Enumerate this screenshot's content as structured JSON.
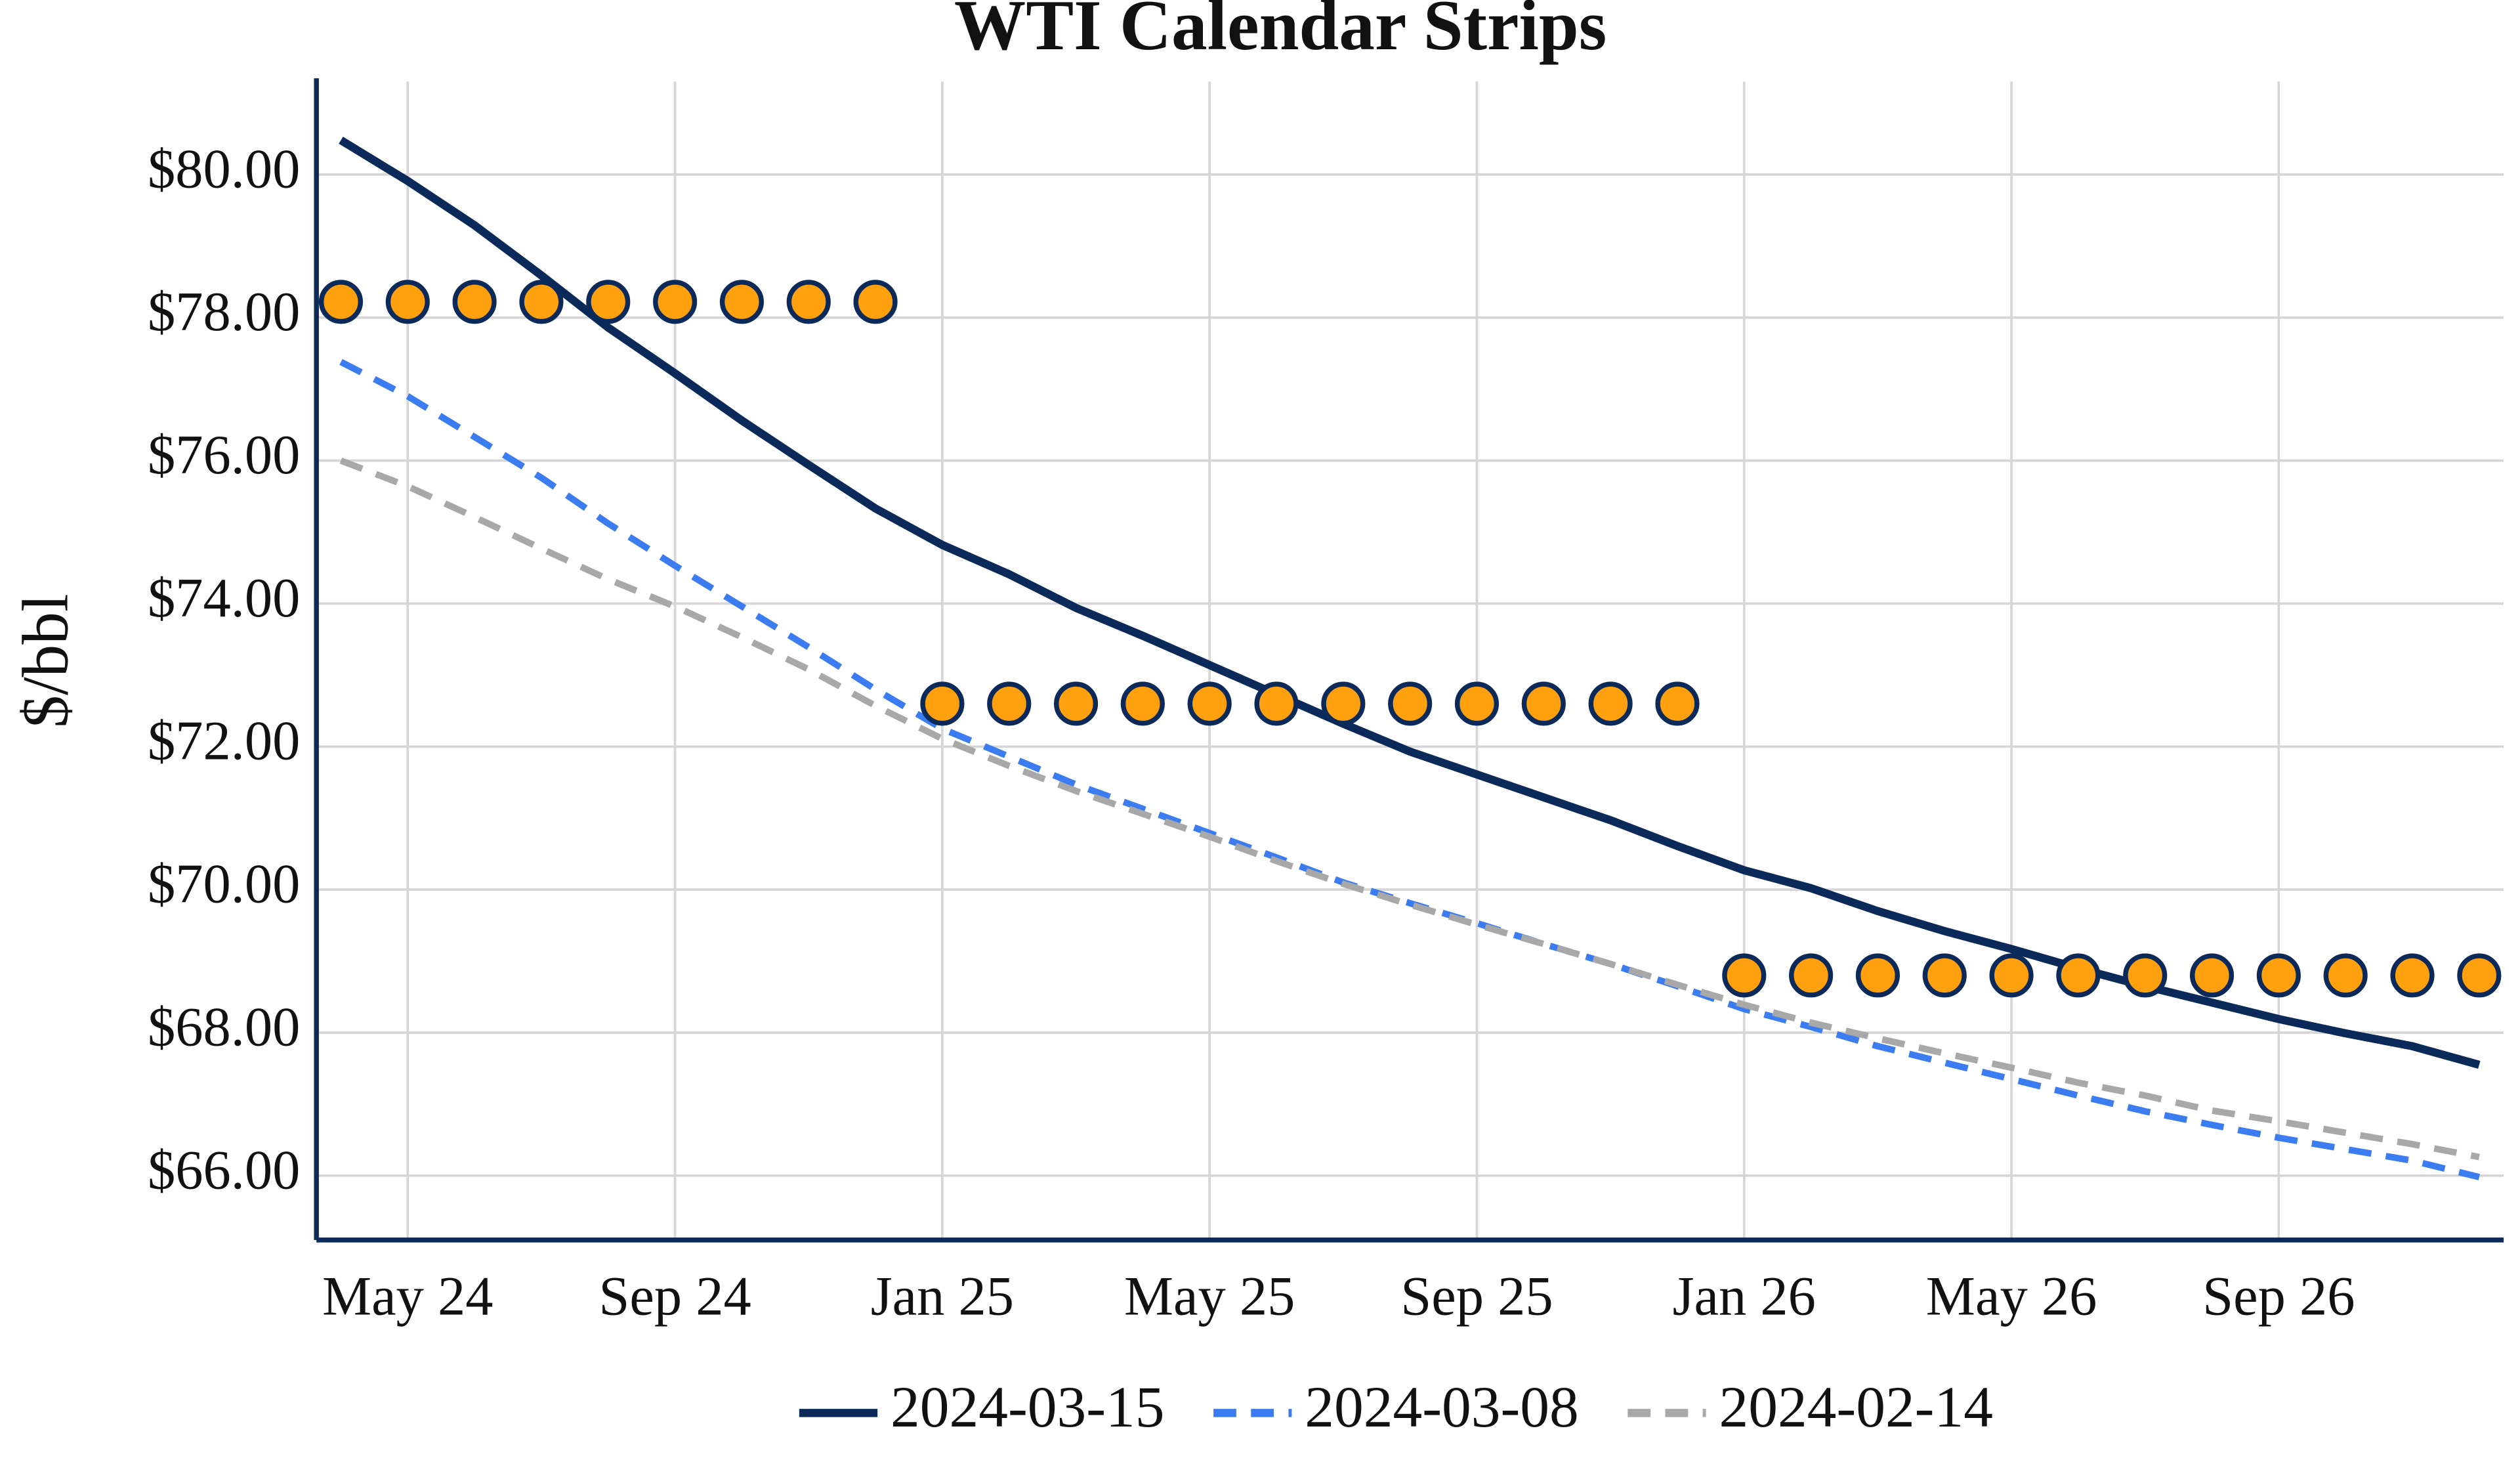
{
  "chart_data": {
    "type": "line",
    "title": "WTI Calendar Strips",
    "ylabel": "$/bbl",
    "x": [
      "2024-04",
      "2024-05",
      "2024-06",
      "2024-07",
      "2024-08",
      "2024-09",
      "2024-10",
      "2024-11",
      "2024-12",
      "2025-01",
      "2025-02",
      "2025-03",
      "2025-04",
      "2025-05",
      "2025-06",
      "2025-07",
      "2025-08",
      "2025-09",
      "2025-10",
      "2025-11",
      "2025-12",
      "2026-01",
      "2026-02",
      "2026-03",
      "2026-04",
      "2026-05",
      "2026-06",
      "2026-07",
      "2026-08",
      "2026-09",
      "2026-10",
      "2026-11",
      "2026-12"
    ],
    "xticks": [
      {
        "value": "2024-05",
        "label": "May 24"
      },
      {
        "value": "2024-09",
        "label": "Sep 24"
      },
      {
        "value": "2025-01",
        "label": "Jan 25"
      },
      {
        "value": "2025-05",
        "label": "May 25"
      },
      {
        "value": "2025-09",
        "label": "Sep 25"
      },
      {
        "value": "2026-01",
        "label": "Jan 26"
      },
      {
        "value": "2026-05",
        "label": "May 26"
      },
      {
        "value": "2026-09",
        "label": "Sep 26"
      }
    ],
    "ylim": [
      65.1,
      81.3
    ],
    "yticks": [
      {
        "value": 66,
        "label": "$66.00"
      },
      {
        "value": 68,
        "label": "$68.00"
      },
      {
        "value": 70,
        "label": "$70.00"
      },
      {
        "value": 72,
        "label": "$72.00"
      },
      {
        "value": 74,
        "label": "$74.00"
      },
      {
        "value": 76,
        "label": "$76.00"
      },
      {
        "value": 78,
        "label": "$78.00"
      },
      {
        "value": 80,
        "label": "$80.00"
      }
    ],
    "grid": true,
    "legend": "bottom",
    "series": [
      {
        "name": "2024-03-15",
        "color": "#0b2a5a",
        "dash": "solid",
        "values": [
          80.48,
          79.91,
          79.29,
          78.59,
          77.86,
          77.22,
          76.56,
          75.94,
          75.33,
          74.82,
          74.41,
          73.94,
          73.55,
          73.14,
          72.73,
          72.32,
          71.93,
          71.61,
          71.29,
          70.97,
          70.61,
          70.27,
          70.02,
          69.7,
          69.42,
          69.17,
          68.9,
          68.65,
          68.42,
          68.19,
          67.99,
          67.81,
          67.55
        ]
      },
      {
        "name": "2024-03-08",
        "color": "#3b7cf0",
        "dash": "dash",
        "values": [
          77.38,
          76.9,
          76.33,
          75.76,
          75.12,
          74.53,
          73.96,
          73.39,
          72.8,
          72.25,
          71.86,
          71.47,
          71.13,
          70.79,
          70.45,
          70.1,
          69.81,
          69.53,
          69.24,
          68.96,
          68.65,
          68.33,
          68.08,
          67.81,
          67.58,
          67.35,
          67.12,
          66.9,
          66.71,
          66.53,
          66.37,
          66.21,
          65.98
        ]
      },
      {
        "name": "2024-02-14",
        "color": "#a8a8a8",
        "dash": "dash",
        "values": [
          76.0,
          75.64,
          75.21,
          74.77,
          74.34,
          73.96,
          73.53,
          73.08,
          72.57,
          72.11,
          71.73,
          71.38,
          71.06,
          70.74,
          70.4,
          70.08,
          69.79,
          69.51,
          69.24,
          68.96,
          68.67,
          68.39,
          68.14,
          67.92,
          67.71,
          67.51,
          67.3,
          67.12,
          66.91,
          66.76,
          66.6,
          66.44,
          66.26
        ]
      },
      {
        "color": "#ffa00f",
        "edge_color": "#0b2a5a",
        "line": false,
        "marker": "circle",
        "values": [
          78.22,
          78.22,
          78.22,
          78.22,
          78.22,
          78.22,
          78.22,
          78.22,
          78.22,
          72.6,
          72.6,
          72.6,
          72.6,
          72.6,
          72.6,
          72.6,
          72.6,
          72.6,
          72.6,
          72.6,
          72.6,
          68.8,
          68.8,
          68.8,
          68.8,
          68.8,
          68.8,
          68.8,
          68.8,
          68.8,
          68.8,
          68.8,
          68.8
        ]
      }
    ]
  }
}
